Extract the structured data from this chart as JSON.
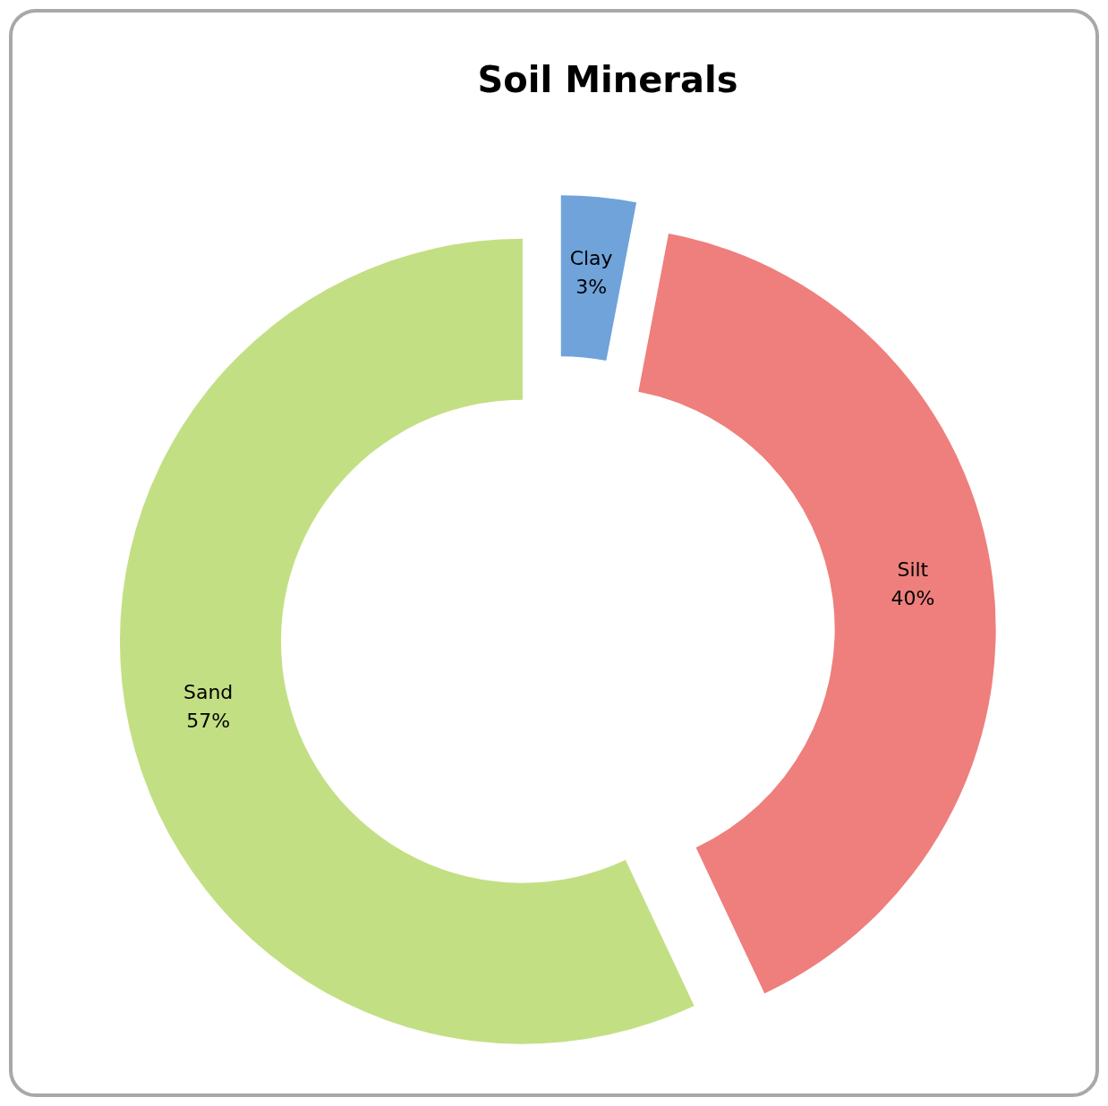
{
  "chart_data": {
    "type": "donut",
    "title": "Soil Minerals",
    "categories": [
      "Clay",
      "Silt",
      "Sand"
    ],
    "values": [
      3,
      40,
      57
    ],
    "value_labels": [
      "3%",
      "40%",
      "57%"
    ],
    "colors": [
      "#6fa3da",
      "#ee7f7c",
      "#c3df84"
    ]
  }
}
